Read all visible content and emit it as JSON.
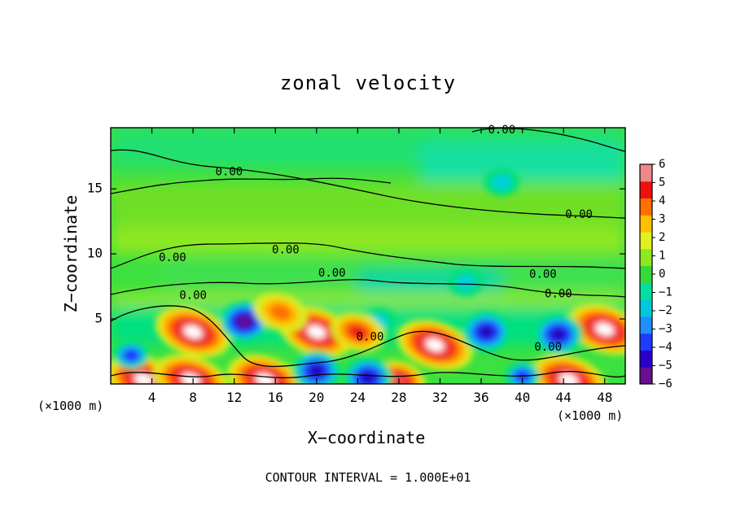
{
  "chart_data": {
    "type": "heatmap",
    "title": "zonal velocity",
    "xlabel": "X−coordinate",
    "ylabel": "Z−coordinate",
    "x_unit_label": "(×1000 m)",
    "x_ticks": [
      4,
      8,
      12,
      16,
      20,
      24,
      28,
      32,
      36,
      40,
      44,
      48
    ],
    "y_ticks": [
      5,
      10,
      15
    ],
    "xlim": [
      0,
      50
    ],
    "ylim": [
      0,
      19.7
    ],
    "colorbar": {
      "ticks": [
        "6",
        "5",
        "4",
        "3",
        "2",
        "1",
        "0",
        "−1",
        "−2",
        "−3",
        "−4",
        "−5",
        "−6"
      ],
      "range": [
        -6,
        6
      ],
      "colors": [
        "#6a0f8e",
        "#2a00c8",
        "#1e3cff",
        "#1e90ff",
        "#00c8d8",
        "#00e0a0",
        "#36d83a",
        "#8ee820",
        "#e0f020",
        "#ffc000",
        "#ff7000",
        "#f01010",
        "#f08888"
      ]
    },
    "contour_labels": [
      {
        "text": "0.00",
        "x": 38.0,
        "z": 19.5
      },
      {
        "text": "0.00",
        "x": 11.5,
        "z": 16.3
      },
      {
        "text": "0.00",
        "x": 45.5,
        "z": 13.0
      },
      {
        "text": "0.00",
        "x": 17.0,
        "z": 10.3
      },
      {
        "text": "0.00",
        "x": 6.0,
        "z": 9.7
      },
      {
        "text": "0.00",
        "x": 21.5,
        "z": 8.5
      },
      {
        "text": "0.00",
        "x": 42.0,
        "z": 8.4
      },
      {
        "text": "0.00",
        "x": 8.0,
        "z": 6.8
      },
      {
        "text": "0.00",
        "x": 43.5,
        "z": 6.9
      },
      {
        "text": "0.00",
        "x": 25.2,
        "z": 3.6
      },
      {
        "text": "0.00",
        "x": 42.5,
        "z": 2.8
      }
    ],
    "features": [
      {
        "x": 8.0,
        "z": 4.0,
        "value": 6
      },
      {
        "x": 20.0,
        "z": 4.0,
        "value": 6
      },
      {
        "x": 31.5,
        "z": 3.0,
        "value": 6
      },
      {
        "x": 48.0,
        "z": 4.2,
        "value": 6
      },
      {
        "x": 3.2,
        "z": 0.3,
        "value": 6
      },
      {
        "x": 7.8,
        "z": 0.3,
        "value": 6
      },
      {
        "x": 15.0,
        "z": 0.3,
        "value": 6
      },
      {
        "x": 28.0,
        "z": 0.3,
        "value": 5
      },
      {
        "x": 44.5,
        "z": 0.3,
        "value": 6
      },
      {
        "x": 13.0,
        "z": 4.8,
        "value": -6
      },
      {
        "x": 36.5,
        "z": 4.0,
        "value": -5
      },
      {
        "x": 43.5,
        "z": 3.8,
        "value": -5
      },
      {
        "x": 20.0,
        "z": 1.0,
        "value": -5
      },
      {
        "x": 25.0,
        "z": 0.5,
        "value": -5
      },
      {
        "x": 2.0,
        "z": 2.2,
        "value": -4
      },
      {
        "x": 40.0,
        "z": 0.6,
        "value": -4
      },
      {
        "x": 26.0,
        "z": 4.8,
        "value": -2
      },
      {
        "x": 34.5,
        "z": 7.8,
        "value": -2
      },
      {
        "x": 38.0,
        "z": 15.5,
        "value": -2
      },
      {
        "x": 24.0,
        "z": 4.0,
        "value": 4
      },
      {
        "x": 16.5,
        "z": 5.5,
        "value": 3
      }
    ],
    "grid": false
  },
  "footnote": "CONTOUR INTERVAL = 1.000E+01"
}
